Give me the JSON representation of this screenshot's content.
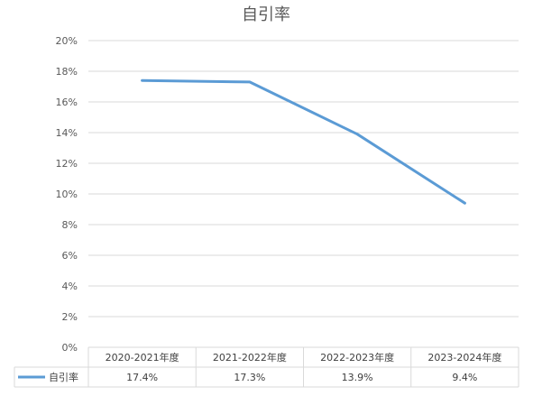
{
  "chart_data": {
    "type": "line",
    "title": "自引率",
    "categories": [
      "2020-2021年度",
      "2021-2022年度",
      "2022-2023年度",
      "2023-2024年度"
    ],
    "series": [
      {
        "name": "自引率",
        "values": [
          17.4,
          17.3,
          13.9,
          9.4
        ],
        "color": "#5B9BD5"
      }
    ],
    "value_labels": [
      "17.4%",
      "17.3%",
      "13.9%",
      "9.4%"
    ],
    "y_ticks": [
      "0%",
      "2%",
      "4%",
      "6%",
      "8%",
      "10%",
      "12%",
      "14%",
      "16%",
      "18%",
      "20%"
    ],
    "ylim": [
      0,
      20
    ],
    "y_unit": "%",
    "grid": true,
    "legend_position": "data-table-left",
    "data_table": true
  }
}
